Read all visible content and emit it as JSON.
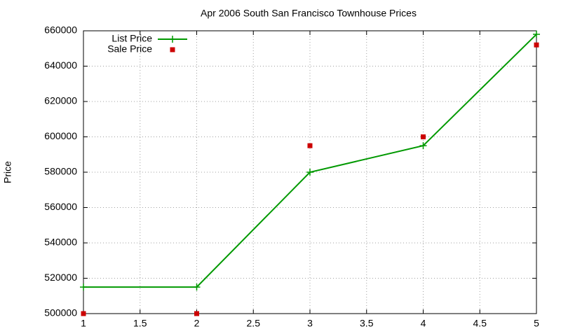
{
  "chart_data": {
    "type": "line",
    "title": "Apr 2006 South San Francisco Townhouse Prices",
    "y_label": "Price",
    "x": [
      1,
      2,
      3,
      4,
      5
    ],
    "series": [
      {
        "name": "List Price",
        "color": "#009900",
        "mode": "lines+points",
        "values": [
          515000,
          515000,
          580000,
          595000,
          658000
        ]
      },
      {
        "name": "Sale Price",
        "color": "#cc0000",
        "mode": "points",
        "values": [
          500000,
          500000,
          595000,
          600000,
          652000
        ]
      }
    ],
    "xlim": [
      1,
      5
    ],
    "xticks": [
      1,
      1.5,
      2,
      2.5,
      3,
      3.5,
      4,
      4.5,
      5
    ],
    "ylim": [
      500000,
      660000
    ],
    "yticks": [
      500000,
      520000,
      540000,
      560000,
      580000,
      600000,
      620000,
      640000,
      660000
    ],
    "grid": true,
    "legend": "top-left"
  }
}
